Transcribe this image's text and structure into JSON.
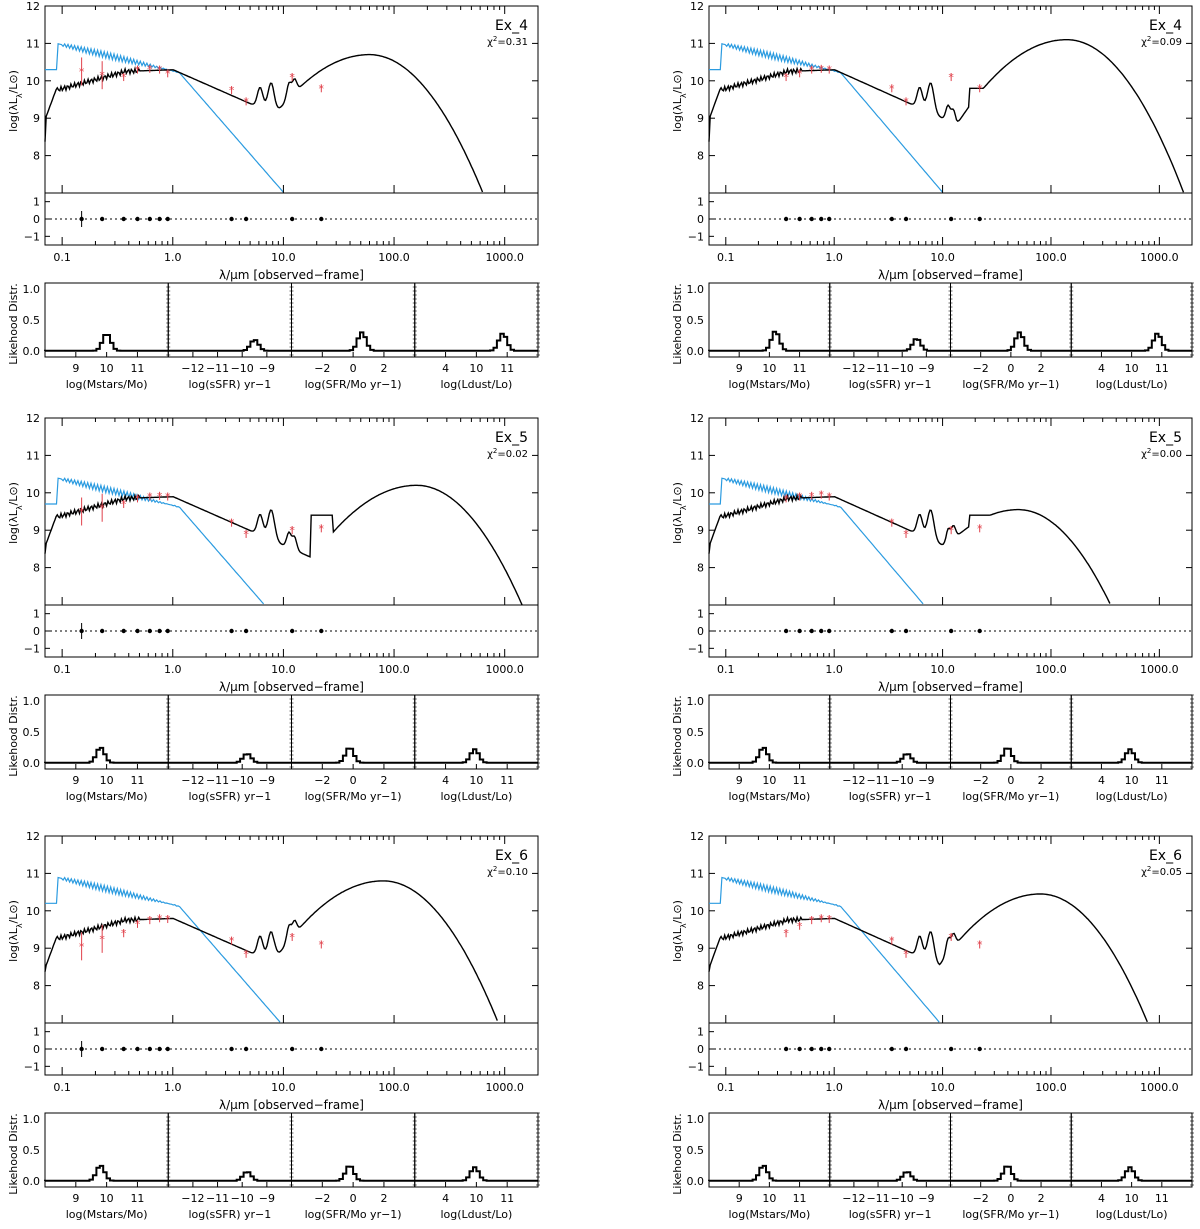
{
  "figure": {
    "sed_ylabel": "log(λLλ/L⊙)",
    "xlabel": "λ/μm [observed−frame]",
    "like_ylabel": "Likehood Distr.",
    "x_tick_labels": [
      "0.1",
      "1.0",
      "10.0",
      "100.0",
      "1000.0"
    ],
    "sed_y_tick_labels": [
      "8",
      "9",
      "10",
      "11",
      "12"
    ],
    "resid_y_tick_labels": [
      "−1",
      "0",
      "1"
    ],
    "like_y_tick_labels": [
      "0.0",
      "0.5",
      "1.0"
    ],
    "like_panels": [
      {
        "xlabel": "log(Mstars/Mo)",
        "ticks": [
          "9",
          "10",
          "11"
        ]
      },
      {
        "xlabel": "log(sSFR) yr−1",
        "ticks": [
          "−12",
          "−11",
          "−10",
          "−9"
        ]
      },
      {
        "xlabel": "log(SFR/Mo yr−1)",
        "ticks": [
          "−2",
          "0",
          "2"
        ]
      },
      {
        "xlabel": "log(Ldust/Lo)",
        "ticks": [
          "4",
          "10",
          "11"
        ]
      }
    ],
    "colors": {
      "model": "#000000",
      "unattenuated": "#2b9be0",
      "photometry": "#e0404a"
    }
  },
  "chart_data": [
    {
      "type": "line",
      "name": "Ex_4",
      "chi2": "=0.31",
      "photometry": {
        "lambda": [
          0.15,
          0.23,
          0.36,
          0.48,
          0.62,
          0.76,
          0.9,
          3.4,
          4.6,
          12,
          22
        ],
        "logL": [
          10.25,
          10.15,
          10.1,
          10.3,
          10.32,
          10.3,
          10.2,
          9.75,
          9.45,
          10.1,
          9.8
        ]
      },
      "likelihood_peaks": {
        "mass": [
          10.0,
          0.28
        ],
        "ssfr": [
          -9.5,
          0.18
        ],
        "sfr": [
          1.0,
          0.3
        ],
        "ldust": [
          11.0,
          0.28
        ]
      },
      "model_peak": {
        "lambda": 60,
        "logL": 10.7
      }
    },
    {
      "type": "line",
      "name": "Ex_4",
      "chi2": "=0.09",
      "photometry": {
        "lambda": [
          0.36,
          0.48,
          0.62,
          0.76,
          0.9,
          3.4,
          4.6,
          12,
          22
        ],
        "logL": [
          10.1,
          10.2,
          10.3,
          10.32,
          10.3,
          9.8,
          9.45,
          10.1,
          9.8
        ]
      },
      "likelihood_peaks": {
        "mass": [
          10.2,
          0.32
        ],
        "ssfr": [
          -9.4,
          0.2
        ],
        "sfr": [
          1.0,
          0.3
        ],
        "ldust": [
          11.0,
          0.28
        ]
      },
      "model_peak": {
        "lambda": 140,
        "logL": 11.1
      }
    },
    {
      "type": "line",
      "name": "Ex_5",
      "chi2": "=0.02",
      "photometry": {
        "lambda": [
          0.15,
          0.23,
          0.36,
          0.48,
          0.62,
          0.76,
          0.9,
          3.4,
          4.6,
          12,
          22
        ],
        "logL": [
          9.5,
          9.6,
          9.7,
          9.85,
          9.9,
          9.92,
          9.9,
          9.2,
          8.9,
          9.0,
          9.05
        ]
      },
      "likelihood_peaks": {
        "mass": [
          9.8,
          0.25
        ],
        "ssfr": [
          -9.8,
          0.15
        ],
        "sfr": [
          0.3,
          0.25
        ],
        "ldust": [
          10.2,
          0.22
        ]
      },
      "model_peak": {
        "lambda": 160,
        "logL": 10.2
      }
    },
    {
      "type": "line",
      "name": "Ex_5",
      "chi2": "=0.00",
      "photometry": {
        "lambda": [
          0.36,
          0.48,
          0.62,
          0.76,
          0.9,
          3.4,
          4.6,
          12,
          22
        ],
        "logL": [
          9.85,
          9.9,
          9.92,
          9.95,
          9.9,
          9.2,
          8.9,
          9.0,
          9.05
        ]
      },
      "likelihood_peaks": {
        "mass": [
          9.8,
          0.25
        ],
        "ssfr": [
          -9.8,
          0.15
        ],
        "sfr": [
          0.3,
          0.25
        ],
        "ldust": [
          10.2,
          0.22
        ]
      },
      "model_peak": {
        "lambda": 50,
        "logL": 9.55
      }
    },
    {
      "type": "line",
      "name": "Ex_6",
      "chi2": "=0.10",
      "photometry": {
        "lambda": [
          0.15,
          0.23,
          0.36,
          0.48,
          0.62,
          0.76,
          0.9,
          3.4,
          4.6,
          12,
          22
        ],
        "logL": [
          9.05,
          9.25,
          9.4,
          9.65,
          9.75,
          9.8,
          9.78,
          9.2,
          8.85,
          9.3,
          9.1
        ]
      },
      "likelihood_peaks": {
        "mass": [
          9.8,
          0.25
        ],
        "ssfr": [
          -9.8,
          0.15
        ],
        "sfr": [
          0.3,
          0.25
        ],
        "ldust": [
          10.2,
          0.22
        ]
      },
      "model_peak": {
        "lambda": 80,
        "logL": 10.8
      }
    },
    {
      "type": "line",
      "name": "Ex_6",
      "chi2": "=0.05",
      "photometry": {
        "lambda": [
          0.36,
          0.48,
          0.62,
          0.76,
          0.9,
          3.4,
          4.6,
          12,
          22
        ],
        "logL": [
          9.4,
          9.6,
          9.75,
          9.8,
          9.78,
          9.2,
          8.85,
          9.3,
          9.1
        ]
      },
      "likelihood_peaks": {
        "mass": [
          9.8,
          0.25
        ],
        "ssfr": [
          -9.8,
          0.15
        ],
        "sfr": [
          0.3,
          0.25
        ],
        "ldust": [
          10.2,
          0.22
        ]
      },
      "model_peak": {
        "lambda": 80,
        "logL": 10.45
      }
    }
  ]
}
